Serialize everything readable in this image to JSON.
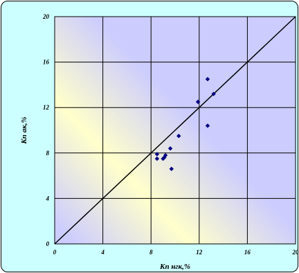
{
  "chart_data": {
    "type": "scatter",
    "xlabel": "Кп нгк,%",
    "ylabel": "Кп ак,%",
    "xlim": [
      0,
      20
    ],
    "ylim": [
      0,
      20
    ],
    "xticks": [
      "0",
      "4",
      "8",
      "12",
      "16",
      "20"
    ],
    "yticks": [
      "0",
      "4",
      "8",
      "12",
      "16",
      "20"
    ],
    "grid": true,
    "reference_line": {
      "from": [
        0,
        0
      ],
      "to": [
        20,
        20
      ],
      "color": "#000000"
    },
    "marker_color": "#000080",
    "background": {
      "plot_area": "#ccccff",
      "band": "#ffffcc",
      "frame": "#ccffff"
    },
    "series": [
      {
        "x": [
          8.5,
          8.5,
          9.0,
          9.1,
          9.2,
          9.6,
          9.7,
          10.3,
          11.9,
          12.7,
          12.7,
          13.2
        ],
        "y": [
          7.9,
          7.5,
          7.5,
          7.6,
          7.8,
          8.4,
          6.6,
          9.5,
          12.5,
          10.4,
          14.5,
          13.2
        ]
      }
    ]
  }
}
